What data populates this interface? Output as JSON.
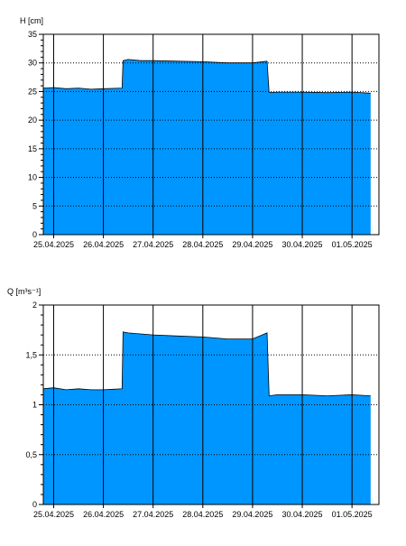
{
  "chart_data": [
    {
      "type": "area",
      "ylabel": "H [cm]",
      "ylim": [
        0,
        35
      ],
      "yticks": [
        0,
        5,
        10,
        15,
        20,
        25,
        30,
        35
      ],
      "ytick_labels": [
        "0",
        "5",
        "10",
        "15",
        "20",
        "25",
        "30",
        "35"
      ],
      "xlim": [
        "24.04.2025 19:00",
        "01.05.2025 13:00"
      ],
      "xtick_labels": [
        "25.04.2025",
        "26.04.2025",
        "27.04.2025",
        "28.04.2025",
        "29.04.2025",
        "30.04.2025",
        "01.05.2025"
      ],
      "grid": true,
      "fill_color": "#0096ff",
      "line_color": "#000000",
      "series": [
        {
          "x": [
            "24.04.2025 19:00",
            "25.04.2025 00:00",
            "25.04.2025 06:00",
            "25.04.2025 12:00",
            "25.04.2025 18:00",
            "26.04.2025 00:00",
            "26.04.2025 09:00",
            "26.04.2025 09:30",
            "26.04.2025 12:00",
            "26.04.2025 18:00",
            "27.04.2025 00:00",
            "27.04.2025 12:00",
            "28.04.2025 00:00",
            "28.04.2025 12:00",
            "29.04.2025 00:00",
            "29.04.2025 07:00",
            "29.04.2025 08:00",
            "29.04.2025 12:00",
            "30.04.2025 00:00",
            "30.04.2025 12:00",
            "01.05.2025 00:00",
            "01.05.2025 09:00"
          ],
          "values": [
            25.6,
            25.7,
            25.5,
            25.6,
            25.4,
            25.5,
            25.6,
            30.4,
            30.6,
            30.4,
            30.4,
            30.3,
            30.2,
            30.0,
            30.0,
            30.3,
            24.8,
            24.9,
            24.9,
            24.8,
            24.9,
            24.7
          ]
        }
      ]
    },
    {
      "type": "area",
      "ylabel": "Q [m³s⁻¹]",
      "ylim": [
        0,
        2
      ],
      "yticks": [
        0,
        0.5,
        1,
        1.5,
        2
      ],
      "ytick_labels": [
        "0",
        "0,5",
        "1",
        "1,5",
        "2"
      ],
      "xlim": [
        "24.04.2025 19:00",
        "01.05.2025 13:00"
      ],
      "xtick_labels": [
        "25.04.2025",
        "26.04.2025",
        "27.04.2025",
        "28.04.2025",
        "29.04.2025",
        "30.04.2025",
        "01.05.2025"
      ],
      "grid": true,
      "fill_color": "#0096ff",
      "line_color": "#000000",
      "series": [
        {
          "x": [
            "24.04.2025 19:00",
            "25.04.2025 00:00",
            "25.04.2025 06:00",
            "25.04.2025 12:00",
            "25.04.2025 18:00",
            "26.04.2025 00:00",
            "26.04.2025 09:00",
            "26.04.2025 09:30",
            "26.04.2025 12:00",
            "26.04.2025 18:00",
            "27.04.2025 00:00",
            "27.04.2025 12:00",
            "28.04.2025 00:00",
            "28.04.2025 12:00",
            "29.04.2025 00:00",
            "29.04.2025 07:00",
            "29.04.2025 08:00",
            "29.04.2025 12:00",
            "30.04.2025 00:00",
            "30.04.2025 12:00",
            "01.05.2025 00:00",
            "01.05.2025 09:00"
          ],
          "values": [
            1.16,
            1.17,
            1.15,
            1.16,
            1.15,
            1.15,
            1.16,
            1.73,
            1.72,
            1.71,
            1.7,
            1.69,
            1.68,
            1.66,
            1.66,
            1.72,
            1.09,
            1.1,
            1.1,
            1.09,
            1.1,
            1.09
          ]
        }
      ]
    }
  ]
}
